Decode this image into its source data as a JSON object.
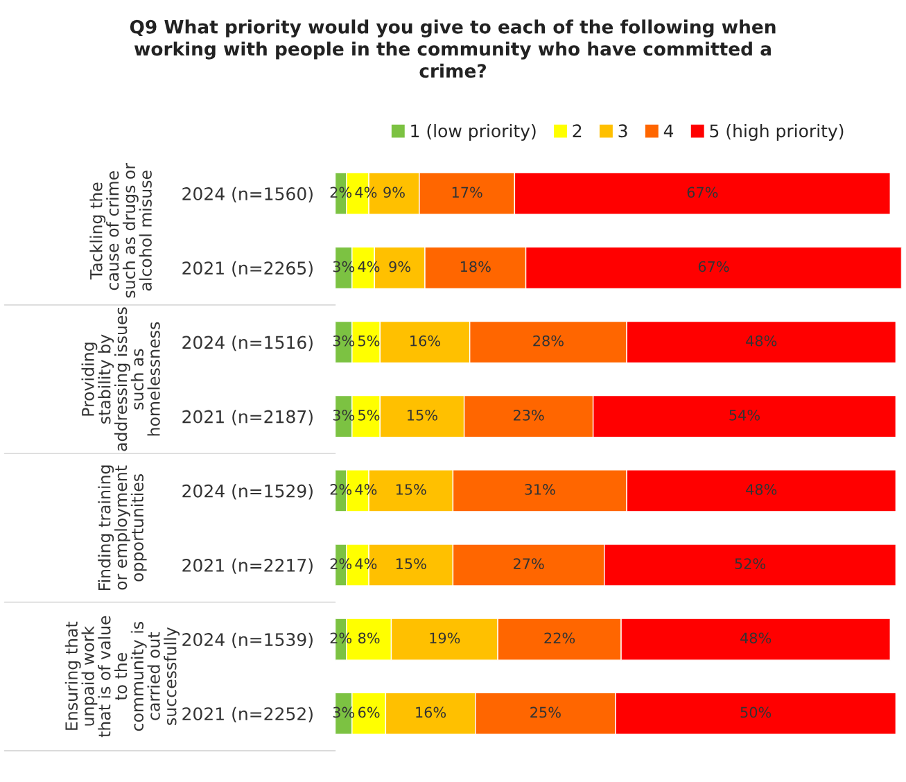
{
  "chart_data": {
    "type": "bar",
    "orientation": "horizontal",
    "stacked": true,
    "title": "Q9 What priority would you give to each of the following when\nworking with people in the community who have committed a\ncrime?",
    "categories": [
      "2024 (n=1560)",
      "2021 (n=2265)",
      "2024 (n=1516)",
      "2021 (n=2187)",
      "2024 (n=1529)",
      "2021 (n=2217)",
      "2024 (n=1539)",
      "2021 (n=2252)"
    ],
    "series": [
      {
        "name": "1 (low priority)",
        "color": "#7cc242",
        "values": [
          2,
          3,
          3,
          3,
          2,
          2,
          2,
          3
        ],
        "value_labels": [
          "2%",
          "3%",
          "3%",
          "3%",
          "2%",
          "2%",
          "2%",
          "3%"
        ]
      },
      {
        "name": "2",
        "color": "#ffff00",
        "values": [
          4,
          4,
          5,
          5,
          4,
          4,
          8,
          6
        ],
        "value_labels": [
          "4%",
          "4%",
          "5%",
          "5%",
          "4%",
          "4%",
          "8%",
          "6%"
        ]
      },
      {
        "name": "3",
        "color": "#ffc000",
        "values": [
          9,
          9,
          16,
          15,
          15,
          15,
          19,
          16
        ],
        "value_labels": [
          "9%",
          "9%",
          "16%",
          "15%",
          "15%",
          "15%",
          "19%",
          "16%"
        ]
      },
      {
        "name": "4",
        "color": "#ff6600",
        "values": [
          17,
          18,
          28,
          23,
          31,
          27,
          22,
          25
        ],
        "value_labels": [
          "17%",
          "18%",
          "28%",
          "23%",
          "31%",
          "27%",
          "22%",
          "25%"
        ]
      },
      {
        "name": "5 (high priority)",
        "color": "#ff0000",
        "values": [
          67,
          67,
          48,
          54,
          48,
          52,
          48,
          50
        ],
        "value_labels": [
          "67%",
          "67%",
          "48%",
          "54%",
          "48%",
          "52%",
          "48%",
          "50%"
        ]
      }
    ],
    "annotations": [
      "Tackling the\ncause of crime\nsuch as drugs or\nalcohol misuse",
      "Providing\nstability by\naddressing issues\nsuch as\nhomelessness",
      "Finding training\nor employment\nopportunities",
      "Ensuring that\nunpaid work\nthat is of value\nto the\ncommunity is\ncarried out\nsuccessfully"
    ],
    "legend": "top",
    "grid": false,
    "tick_labels": "y"
  }
}
